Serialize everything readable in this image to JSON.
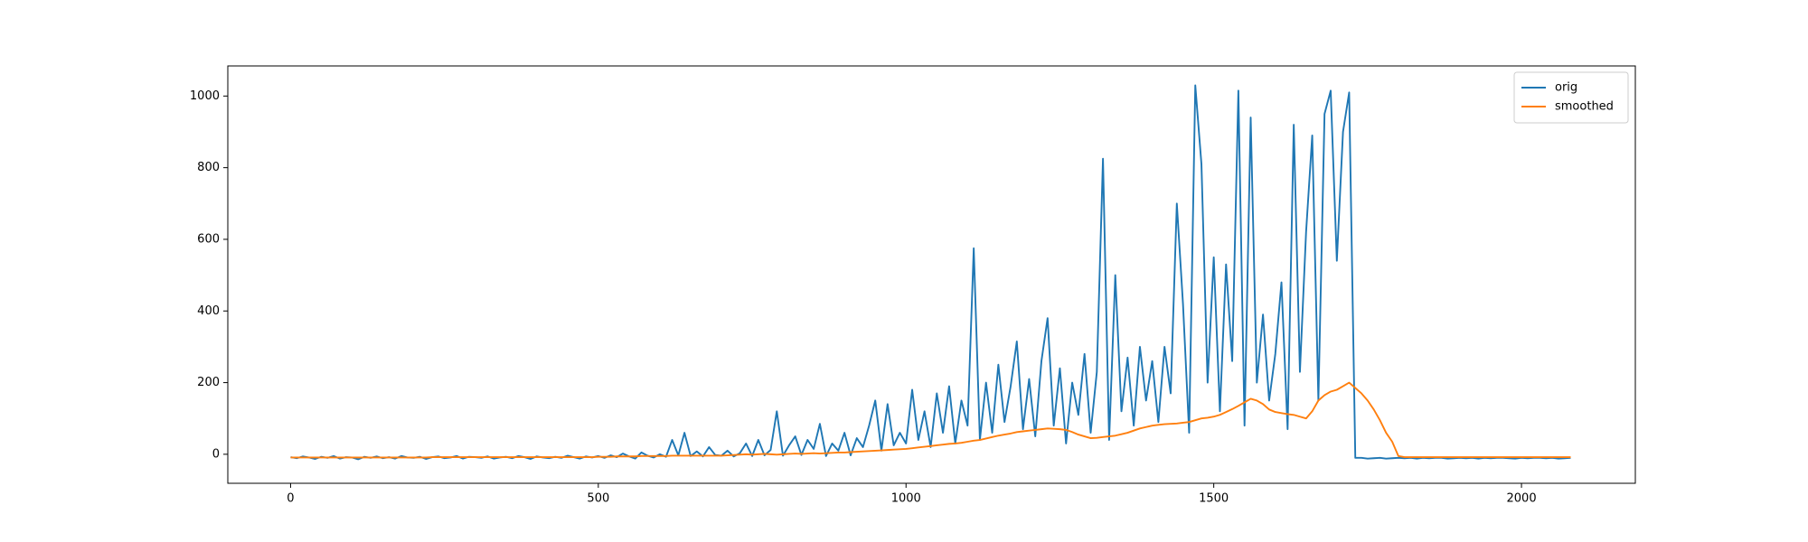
{
  "chart_data": {
    "type": "line",
    "x": [
      0,
      10,
      20,
      30,
      40,
      50,
      60,
      70,
      80,
      90,
      100,
      110,
      120,
      130,
      140,
      150,
      160,
      170,
      180,
      190,
      200,
      210,
      220,
      230,
      240,
      250,
      260,
      270,
      280,
      290,
      300,
      310,
      320,
      330,
      340,
      350,
      360,
      370,
      380,
      390,
      400,
      410,
      420,
      430,
      440,
      450,
      460,
      470,
      480,
      490,
      500,
      510,
      520,
      530,
      540,
      550,
      560,
      570,
      580,
      590,
      600,
      610,
      620,
      630,
      640,
      650,
      660,
      670,
      680,
      690,
      700,
      710,
      720,
      730,
      740,
      750,
      760,
      770,
      780,
      790,
      800,
      810,
      820,
      830,
      840,
      850,
      860,
      870,
      880,
      890,
      900,
      910,
      920,
      930,
      940,
      950,
      960,
      970,
      980,
      990,
      1000,
      1010,
      1020,
      1030,
      1040,
      1050,
      1060,
      1070,
      1080,
      1090,
      1100,
      1110,
      1120,
      1130,
      1140,
      1150,
      1160,
      1170,
      1180,
      1190,
      1200,
      1210,
      1220,
      1230,
      1240,
      1250,
      1260,
      1270,
      1280,
      1290,
      1300,
      1310,
      1320,
      1330,
      1340,
      1350,
      1360,
      1370,
      1380,
      1390,
      1400,
      1410,
      1420,
      1430,
      1440,
      1450,
      1460,
      1470,
      1480,
      1490,
      1500,
      1510,
      1520,
      1530,
      1540,
      1550,
      1560,
      1570,
      1580,
      1590,
      1600,
      1610,
      1620,
      1630,
      1640,
      1650,
      1660,
      1670,
      1680,
      1690,
      1700,
      1710,
      1720,
      1730,
      1740,
      1750,
      1760,
      1770,
      1780,
      1790,
      1800,
      1810,
      1820,
      1830,
      1840,
      1850,
      1860,
      1870,
      1880,
      1890,
      1900,
      1910,
      1920,
      1930,
      1940,
      1950,
      1960,
      1970,
      1980,
      1990,
      2000,
      2010,
      2020,
      2030,
      2040,
      2050,
      2060,
      2070,
      2080
    ],
    "series": [
      {
        "name": "orig",
        "color": "#1f77b4",
        "values": [
          -8,
          -11,
          -6,
          -9,
          -13,
          -7,
          -10,
          -5,
          -12,
          -8,
          -9,
          -14,
          -7,
          -10,
          -6,
          -11,
          -8,
          -12,
          -5,
          -9,
          -10,
          -7,
          -13,
          -8,
          -6,
          -11,
          -9,
          -5,
          -12,
          -7,
          -8,
          -10,
          -6,
          -12,
          -9,
          -7,
          -11,
          -5,
          -8,
          -13,
          -6,
          -9,
          -11,
          -7,
          -10,
          -4,
          -8,
          -12,
          -6,
          -9,
          -5,
          -10,
          -3,
          -8,
          2,
          -6,
          -12,
          5,
          -4,
          -9,
          0,
          -7,
          40,
          -3,
          60,
          -5,
          8,
          -6,
          20,
          -2,
          -4,
          10,
          -6,
          3,
          30,
          -5,
          40,
          -3,
          12,
          120,
          -4,
          25,
          50,
          -2,
          40,
          15,
          85,
          -5,
          30,
          10,
          60,
          -3,
          45,
          20,
          80,
          150,
          10,
          140,
          25,
          60,
          30,
          180,
          40,
          120,
          20,
          170,
          60,
          190,
          30,
          150,
          80,
          575,
          40,
          200,
          60,
          250,
          90,
          190,
          315,
          70,
          210,
          50,
          260,
          380,
          80,
          240,
          30,
          200,
          110,
          280,
          60,
          230,
          825,
          40,
          500,
          120,
          270,
          80,
          300,
          150,
          260,
          90,
          300,
          170,
          700,
          420,
          60,
          1030,
          810,
          200,
          550,
          120,
          530,
          260,
          1015,
          80,
          940,
          200,
          390,
          150,
          280,
          480,
          70,
          920,
          230,
          620,
          890,
          150,
          950,
          1015,
          540,
          900,
          1010,
          -10,
          -10,
          -12,
          -11,
          -10,
          -12,
          -11,
          -10,
          -11,
          -10,
          -12,
          -10,
          -11,
          -10,
          -10,
          -12,
          -11,
          -10,
          -11,
          -10,
          -12,
          -10,
          -11,
          -10,
          -10,
          -11,
          -12,
          -10,
          -11,
          -10,
          -10,
          -11,
          -10,
          -12,
          -11,
          -10
        ]
      },
      {
        "name": "smoothed",
        "color": "#ff7f0e",
        "values": [
          -9,
          -9,
          -9,
          -9,
          -9,
          -9,
          -9,
          -9,
          -9,
          -9,
          -9,
          -9,
          -9,
          -9,
          -9,
          -9,
          -9,
          -9,
          -9,
          -9,
          -9,
          -9,
          -9,
          -8,
          -8,
          -8,
          -8,
          -8,
          -8,
          -8,
          -8,
          -8,
          -8,
          -8,
          -8,
          -8,
          -8,
          -8,
          -8,
          -8,
          -8,
          -8,
          -8,
          -8,
          -8,
          -8,
          -8,
          -8,
          -8,
          -8,
          -7,
          -7,
          -7,
          -6,
          -6,
          -6,
          -6,
          -5,
          -5,
          -5,
          -5,
          -5,
          -4,
          -4,
          -4,
          -4,
          -4,
          -4,
          -4,
          -4,
          -4,
          -3,
          -2,
          -1,
          0,
          -1,
          0,
          1,
          0,
          -1,
          0,
          1,
          2,
          1,
          2,
          3,
          2,
          3,
          4,
          5,
          5,
          6,
          7,
          8,
          9,
          10,
          11,
          12,
          13,
          14,
          15,
          17,
          19,
          21,
          23,
          25,
          27,
          29,
          30,
          32,
          35,
          38,
          40,
          44,
          48,
          52,
          55,
          58,
          62,
          64,
          66,
          68,
          70,
          72,
          71,
          70,
          68,
          62,
          55,
          50,
          45,
          46,
          48,
          50,
          52,
          56,
          60,
          66,
          72,
          76,
          80,
          82,
          84,
          85,
          86,
          88,
          90,
          95,
          100,
          102,
          105,
          110,
          118,
          126,
          135,
          145,
          155,
          150,
          140,
          125,
          118,
          115,
          112,
          110,
          105,
          100,
          120,
          150,
          165,
          175,
          180,
          190,
          200,
          185,
          170,
          150,
          125,
          95,
          60,
          35,
          -5,
          -8,
          -8,
          -8,
          -8,
          -8,
          -8,
          -8,
          -8,
          -8,
          -8,
          -8,
          -8,
          -8,
          -8,
          -8,
          -8,
          -8,
          -8,
          -8,
          -8,
          -8,
          -8,
          -8,
          -8,
          -8,
          -8,
          -8,
          -8
        ]
      }
    ],
    "xlim": [
      -102,
      2185
    ],
    "ylim": [
      -81,
      1084
    ],
    "xticks": [
      0,
      500,
      1000,
      1500,
      2000
    ],
    "yticks": [
      0,
      200,
      400,
      600,
      800,
      1000
    ],
    "legend": "upper right"
  }
}
